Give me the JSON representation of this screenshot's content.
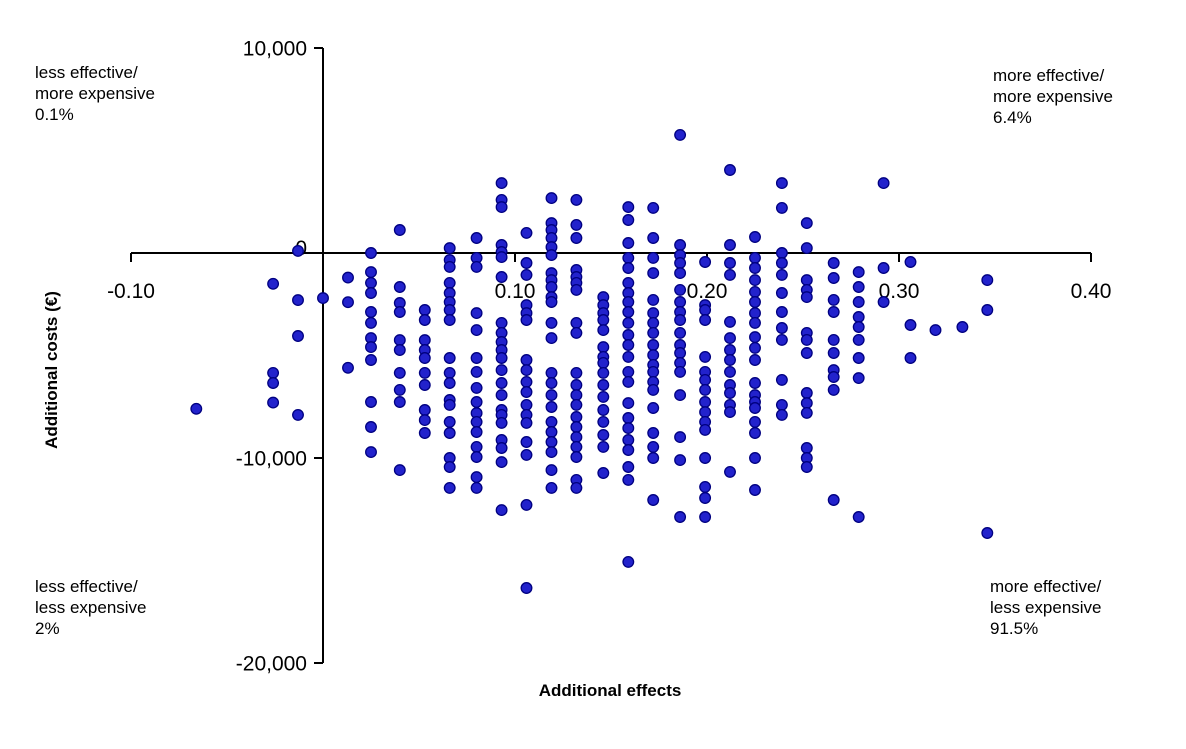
{
  "chart_data": {
    "type": "scatter",
    "title": "",
    "xlabel": "Additional effects",
    "ylabel": "Additional costs (€)",
    "xlim": [
      -0.1,
      0.4
    ],
    "ylim": [
      -20000,
      10000
    ],
    "grid": false,
    "legend": "none",
    "x_tick_values": [
      -0.1,
      0.1,
      0.2,
      0.3,
      0.4
    ],
    "x_tick_labels": [
      "-0.10",
      "0.10",
      "0.20",
      "0.30",
      "0.40"
    ],
    "y_tick_values": [
      10000,
      0,
      -10000,
      -20000
    ],
    "y_tick_labels": [
      "10,000",
      "0",
      "-10,000",
      "-20,000"
    ],
    "axis_color": "#000000",
    "marker_color": "#2222CC",
    "marker_edge_color": "#000080",
    "quadrant_labels": {
      "top_left": {
        "lines": [
          "less effective/",
          "more expensive",
          "0.1%"
        ]
      },
      "top_right": {
        "lines": [
          "more effective/",
          "more expensive",
          "6.4%"
        ]
      },
      "bottom_left": {
        "lines": [
          "less effective/",
          "less expensive",
          "2%"
        ]
      },
      "bottom_right": {
        "lines": [
          "more effective/",
          "less expensive",
          "91.5%"
        ]
      }
    },
    "points": [
      [
        -0.066,
        -7600
      ],
      [
        -0.026,
        -1500
      ],
      [
        -0.026,
        -5850
      ],
      [
        -0.026,
        -6340
      ],
      [
        -0.026,
        -7300
      ],
      [
        -0.013,
        100
      ],
      [
        -0.013,
        -2300
      ],
      [
        -0.013,
        -4050
      ],
      [
        -0.013,
        -7900
      ],
      [
        0.0,
        -2200
      ],
      [
        0.013,
        -1200
      ],
      [
        0.013,
        -2400
      ],
      [
        0.013,
        -5600
      ],
      [
        0.025,
        0
      ],
      [
        0.025,
        -930
      ],
      [
        0.025,
        -1460
      ],
      [
        0.025,
        -1950
      ],
      [
        0.025,
        -2880
      ],
      [
        0.025,
        -3410
      ],
      [
        0.025,
        -4150
      ],
      [
        0.025,
        -4590
      ],
      [
        0.025,
        -5220
      ],
      [
        0.025,
        -7270
      ],
      [
        0.025,
        -8490
      ],
      [
        0.025,
        -9710
      ],
      [
        0.04,
        1120
      ],
      [
        0.04,
        -1660
      ],
      [
        0.04,
        -2440
      ],
      [
        0.04,
        -2880
      ],
      [
        0.04,
        -4250
      ],
      [
        0.04,
        -4730
      ],
      [
        0.04,
        -5850
      ],
      [
        0.04,
        -6680
      ],
      [
        0.04,
        -7270
      ],
      [
        0.04,
        -10590
      ],
      [
        0.053,
        -2780
      ],
      [
        0.053,
        -3270
      ],
      [
        0.053,
        -4250
      ],
      [
        0.053,
        -4730
      ],
      [
        0.053,
        -5120
      ],
      [
        0.053,
        -5850
      ],
      [
        0.053,
        -6440
      ],
      [
        0.053,
        -7660
      ],
      [
        0.053,
        -8150
      ],
      [
        0.053,
        -8780
      ],
      [
        0.066,
        240
      ],
      [
        0.066,
        -340
      ],
      [
        0.066,
        -680
      ],
      [
        0.066,
        -1460
      ],
      [
        0.066,
        -1950
      ],
      [
        0.066,
        -2390
      ],
      [
        0.066,
        -2780
      ],
      [
        0.066,
        -3270
      ],
      [
        0.066,
        -5120
      ],
      [
        0.066,
        -5850
      ],
      [
        0.066,
        -6340
      ],
      [
        0.066,
        -7170
      ],
      [
        0.066,
        -7410
      ],
      [
        0.066,
        -8240
      ],
      [
        0.066,
        -8780
      ],
      [
        0.066,
        -10000
      ],
      [
        0.066,
        -10440
      ],
      [
        0.066,
        -11460
      ],
      [
        0.08,
        730
      ],
      [
        0.08,
        -240
      ],
      [
        0.08,
        -680
      ],
      [
        0.08,
        -2930
      ],
      [
        0.08,
        -3760
      ],
      [
        0.08,
        -5120
      ],
      [
        0.08,
        -5800
      ],
      [
        0.08,
        -6580
      ],
      [
        0.08,
        -7270
      ],
      [
        0.08,
        -7810
      ],
      [
        0.08,
        -8240
      ],
      [
        0.08,
        -8730
      ],
      [
        0.08,
        -9460
      ],
      [
        0.08,
        -9950
      ],
      [
        0.08,
        -10930
      ],
      [
        0.08,
        -11460
      ],
      [
        0.093,
        3410
      ],
      [
        0.093,
        2590
      ],
      [
        0.093,
        2240
      ],
      [
        0.093,
        390
      ],
      [
        0.093,
        50
      ],
      [
        0.093,
        -200
      ],
      [
        0.093,
        -1170
      ],
      [
        0.093,
        -3410
      ],
      [
        0.093,
        -3900
      ],
      [
        0.093,
        -4340
      ],
      [
        0.093,
        -4730
      ],
      [
        0.093,
        -5120
      ],
      [
        0.093,
        -5710
      ],
      [
        0.093,
        -6340
      ],
      [
        0.093,
        -6930
      ],
      [
        0.093,
        -7660
      ],
      [
        0.093,
        -7900
      ],
      [
        0.093,
        -8290
      ],
      [
        0.093,
        -9120
      ],
      [
        0.093,
        -9510
      ],
      [
        0.093,
        -10200
      ],
      [
        0.093,
        -12540
      ],
      [
        0.106,
        980
      ],
      [
        0.106,
        -490
      ],
      [
        0.106,
        -1070
      ],
      [
        0.106,
        -2540
      ],
      [
        0.106,
        -2930
      ],
      [
        0.106,
        -3270
      ],
      [
        0.106,
        -5220
      ],
      [
        0.106,
        -5710
      ],
      [
        0.106,
        -6290
      ],
      [
        0.106,
        -6780
      ],
      [
        0.106,
        -7410
      ],
      [
        0.106,
        -7900
      ],
      [
        0.106,
        -8290
      ],
      [
        0.106,
        -9220
      ],
      [
        0.106,
        -9850
      ],
      [
        0.106,
        -12290
      ],
      [
        0.106,
        -16340
      ],
      [
        0.119,
        2680
      ],
      [
        0.119,
        1460
      ],
      [
        0.119,
        1120
      ],
      [
        0.119,
        730
      ],
      [
        0.119,
        290
      ],
      [
        0.119,
        -100
      ],
      [
        0.119,
        -980
      ],
      [
        0.119,
        -1320
      ],
      [
        0.119,
        -1660
      ],
      [
        0.119,
        -2150
      ],
      [
        0.119,
        -2390
      ],
      [
        0.119,
        -3410
      ],
      [
        0.119,
        -4150
      ],
      [
        0.119,
        -5850
      ],
      [
        0.119,
        -6340
      ],
      [
        0.119,
        -6930
      ],
      [
        0.119,
        -7510
      ],
      [
        0.119,
        -8240
      ],
      [
        0.119,
        -8730
      ],
      [
        0.119,
        -9220
      ],
      [
        0.119,
        -9710
      ],
      [
        0.119,
        -10590
      ],
      [
        0.119,
        -11460
      ],
      [
        0.132,
        2590
      ],
      [
        0.132,
        1370
      ],
      [
        0.132,
        730
      ],
      [
        0.132,
        -830
      ],
      [
        0.132,
        -1170
      ],
      [
        0.132,
        -1460
      ],
      [
        0.132,
        -1800
      ],
      [
        0.132,
        -3410
      ],
      [
        0.132,
        -3900
      ],
      [
        0.132,
        -5850
      ],
      [
        0.132,
        -6440
      ],
      [
        0.132,
        -6930
      ],
      [
        0.132,
        -7410
      ],
      [
        0.132,
        -8000
      ],
      [
        0.132,
        -8490
      ],
      [
        0.132,
        -8980
      ],
      [
        0.132,
        -9460
      ],
      [
        0.132,
        -9950
      ],
      [
        0.132,
        -11070
      ],
      [
        0.132,
        -11460
      ],
      [
        0.146,
        -2150
      ],
      [
        0.146,
        -2540
      ],
      [
        0.146,
        -2930
      ],
      [
        0.146,
        -3270
      ],
      [
        0.146,
        -3760
      ],
      [
        0.146,
        -4590
      ],
      [
        0.146,
        -5070
      ],
      [
        0.146,
        -5360
      ],
      [
        0.146,
        -5850
      ],
      [
        0.146,
        -6440
      ],
      [
        0.146,
        -7020
      ],
      [
        0.146,
        -7660
      ],
      [
        0.146,
        -8240
      ],
      [
        0.146,
        -8880
      ],
      [
        0.146,
        -9460
      ],
      [
        0.146,
        -10730
      ],
      [
        0.159,
        2240
      ],
      [
        0.159,
        1610
      ],
      [
        0.159,
        490
      ],
      [
        0.159,
        -240
      ],
      [
        0.159,
        -730
      ],
      [
        0.159,
        -1460
      ],
      [
        0.159,
        -1950
      ],
      [
        0.159,
        -2390
      ],
      [
        0.159,
        -2880
      ],
      [
        0.159,
        -3410
      ],
      [
        0.159,
        -4000
      ],
      [
        0.159,
        -4490
      ],
      [
        0.159,
        -5070
      ],
      [
        0.159,
        -5800
      ],
      [
        0.159,
        -6290
      ],
      [
        0.159,
        -7320
      ],
      [
        0.159,
        -8050
      ],
      [
        0.159,
        -8540
      ],
      [
        0.159,
        -9120
      ],
      [
        0.159,
        -9610
      ],
      [
        0.159,
        -10440
      ],
      [
        0.159,
        -11070
      ],
      [
        0.159,
        -15070
      ],
      [
        0.172,
        2200
      ],
      [
        0.172,
        730
      ],
      [
        0.172,
        -240
      ],
      [
        0.172,
        -980
      ],
      [
        0.172,
        -2290
      ],
      [
        0.172,
        -2930
      ],
      [
        0.172,
        -3410
      ],
      [
        0.172,
        -3900
      ],
      [
        0.172,
        -4490
      ],
      [
        0.172,
        -4980
      ],
      [
        0.172,
        -5460
      ],
      [
        0.172,
        -5800
      ],
      [
        0.172,
        -6290
      ],
      [
        0.172,
        -6680
      ],
      [
        0.172,
        -7560
      ],
      [
        0.172,
        -8780
      ],
      [
        0.172,
        -9460
      ],
      [
        0.172,
        -10000
      ],
      [
        0.172,
        -12050
      ],
      [
        0.186,
        5760
      ],
      [
        0.186,
        390
      ],
      [
        0.186,
        -100
      ],
      [
        0.186,
        -490
      ],
      [
        0.186,
        -980
      ],
      [
        0.186,
        -1800
      ],
      [
        0.186,
        -2390
      ],
      [
        0.186,
        -2880
      ],
      [
        0.186,
        -3270
      ],
      [
        0.186,
        -3900
      ],
      [
        0.186,
        -4490
      ],
      [
        0.186,
        -4880
      ],
      [
        0.186,
        -5360
      ],
      [
        0.186,
        -5800
      ],
      [
        0.186,
        -6930
      ],
      [
        0.186,
        -8980
      ],
      [
        0.186,
        -10100
      ],
      [
        0.186,
        -12880
      ],
      [
        0.199,
        -440
      ],
      [
        0.199,
        -2540
      ],
      [
        0.199,
        -2780
      ],
      [
        0.199,
        -3270
      ],
      [
        0.199,
        -5070
      ],
      [
        0.199,
        -5800
      ],
      [
        0.199,
        -6190
      ],
      [
        0.199,
        -6680
      ],
      [
        0.199,
        -7270
      ],
      [
        0.199,
        -7760
      ],
      [
        0.199,
        -8240
      ],
      [
        0.199,
        -8630
      ],
      [
        0.199,
        -10000
      ],
      [
        0.199,
        -11410
      ],
      [
        0.199,
        -11950
      ],
      [
        0.199,
        -12880
      ],
      [
        0.212,
        4050
      ],
      [
        0.212,
        390
      ],
      [
        0.212,
        -490
      ],
      [
        0.212,
        -1070
      ],
      [
        0.212,
        -3360
      ],
      [
        0.212,
        -4150
      ],
      [
        0.212,
        -4730
      ],
      [
        0.212,
        -5220
      ],
      [
        0.212,
        -5800
      ],
      [
        0.212,
        -6440
      ],
      [
        0.212,
        -6830
      ],
      [
        0.212,
        -7410
      ],
      [
        0.212,
        -7760
      ],
      [
        0.212,
        -10680
      ],
      [
        0.225,
        780
      ],
      [
        0.225,
        -240
      ],
      [
        0.225,
        -730
      ],
      [
        0.225,
        -1320
      ],
      [
        0.225,
        -1900
      ],
      [
        0.225,
        -2390
      ],
      [
        0.225,
        -2930
      ],
      [
        0.225,
        -3410
      ],
      [
        0.225,
        -4100
      ],
      [
        0.225,
        -4630
      ],
      [
        0.225,
        -5220
      ],
      [
        0.225,
        -6340
      ],
      [
        0.225,
        -6930
      ],
      [
        0.225,
        -7270
      ],
      [
        0.225,
        -7560
      ],
      [
        0.225,
        -8240
      ],
      [
        0.225,
        -8780
      ],
      [
        0.225,
        -10000
      ],
      [
        0.225,
        -11560
      ],
      [
        0.239,
        3410
      ],
      [
        0.239,
        2200
      ],
      [
        0.239,
        0
      ],
      [
        0.239,
        -490
      ],
      [
        0.239,
        -1070
      ],
      [
        0.239,
        -1950
      ],
      [
        0.239,
        -2880
      ],
      [
        0.239,
        -3660
      ],
      [
        0.239,
        -4240
      ],
      [
        0.239,
        -6190
      ],
      [
        0.239,
        -7410
      ],
      [
        0.239,
        -7900
      ],
      [
        0.252,
        1460
      ],
      [
        0.252,
        240
      ],
      [
        0.252,
        -1320
      ],
      [
        0.252,
        -1800
      ],
      [
        0.252,
        -2150
      ],
      [
        0.252,
        -3900
      ],
      [
        0.252,
        -4240
      ],
      [
        0.252,
        -4880
      ],
      [
        0.252,
        -6830
      ],
      [
        0.252,
        -7320
      ],
      [
        0.252,
        -7800
      ],
      [
        0.252,
        -9510
      ],
      [
        0.252,
        -10000
      ],
      [
        0.252,
        -10440
      ],
      [
        0.266,
        -490
      ],
      [
        0.266,
        -1220
      ],
      [
        0.266,
        -2290
      ],
      [
        0.266,
        -2880
      ],
      [
        0.266,
        -4240
      ],
      [
        0.266,
        -4880
      ],
      [
        0.266,
        -5710
      ],
      [
        0.266,
        -6050
      ],
      [
        0.266,
        -6680
      ],
      [
        0.266,
        -12050
      ],
      [
        0.279,
        -930
      ],
      [
        0.279,
        -1660
      ],
      [
        0.279,
        -2390
      ],
      [
        0.279,
        -3120
      ],
      [
        0.279,
        -3610
      ],
      [
        0.279,
        -4240
      ],
      [
        0.279,
        -5120
      ],
      [
        0.279,
        -6100
      ],
      [
        0.279,
        -12880
      ],
      [
        0.292,
        3410
      ],
      [
        0.292,
        -730
      ],
      [
        0.292,
        -2390
      ],
      [
        0.306,
        -440
      ],
      [
        0.306,
        -3510
      ],
      [
        0.306,
        -5120
      ],
      [
        0.319,
        -3760
      ],
      [
        0.333,
        -3610
      ],
      [
        0.346,
        -1320
      ],
      [
        0.346,
        -2780
      ],
      [
        0.346,
        -13660
      ]
    ]
  }
}
